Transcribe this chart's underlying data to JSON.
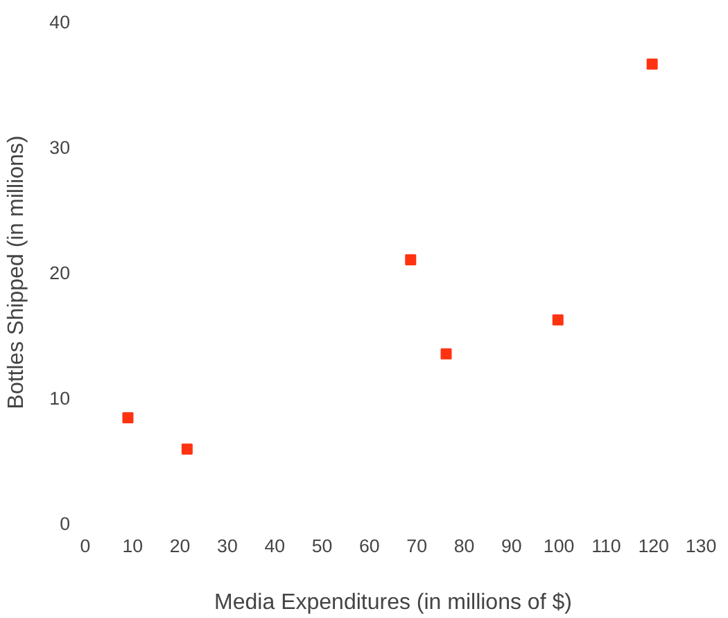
{
  "chart_data": {
    "type": "scatter",
    "xlabel": "Media Expenditures (in millions of $)",
    "ylabel": "Bottles Shipped (in millions)",
    "x": [
      9,
      21.5,
      68.7,
      76.2,
      99.8,
      119.7
    ],
    "series": [
      {
        "color": "#ff3311",
        "values": [
          8.4,
          5.9,
          21.0,
          13.5,
          16.2,
          36.6
        ]
      }
    ],
    "xlim": [
      0,
      130
    ],
    "ylim": [
      0,
      40
    ],
    "xticks": [
      0,
      10,
      20,
      30,
      40,
      50,
      60,
      70,
      80,
      90,
      100,
      110,
      120,
      130
    ],
    "yticks": [
      0,
      10,
      20,
      30,
      40
    ],
    "marker": "square",
    "grid": false
  }
}
